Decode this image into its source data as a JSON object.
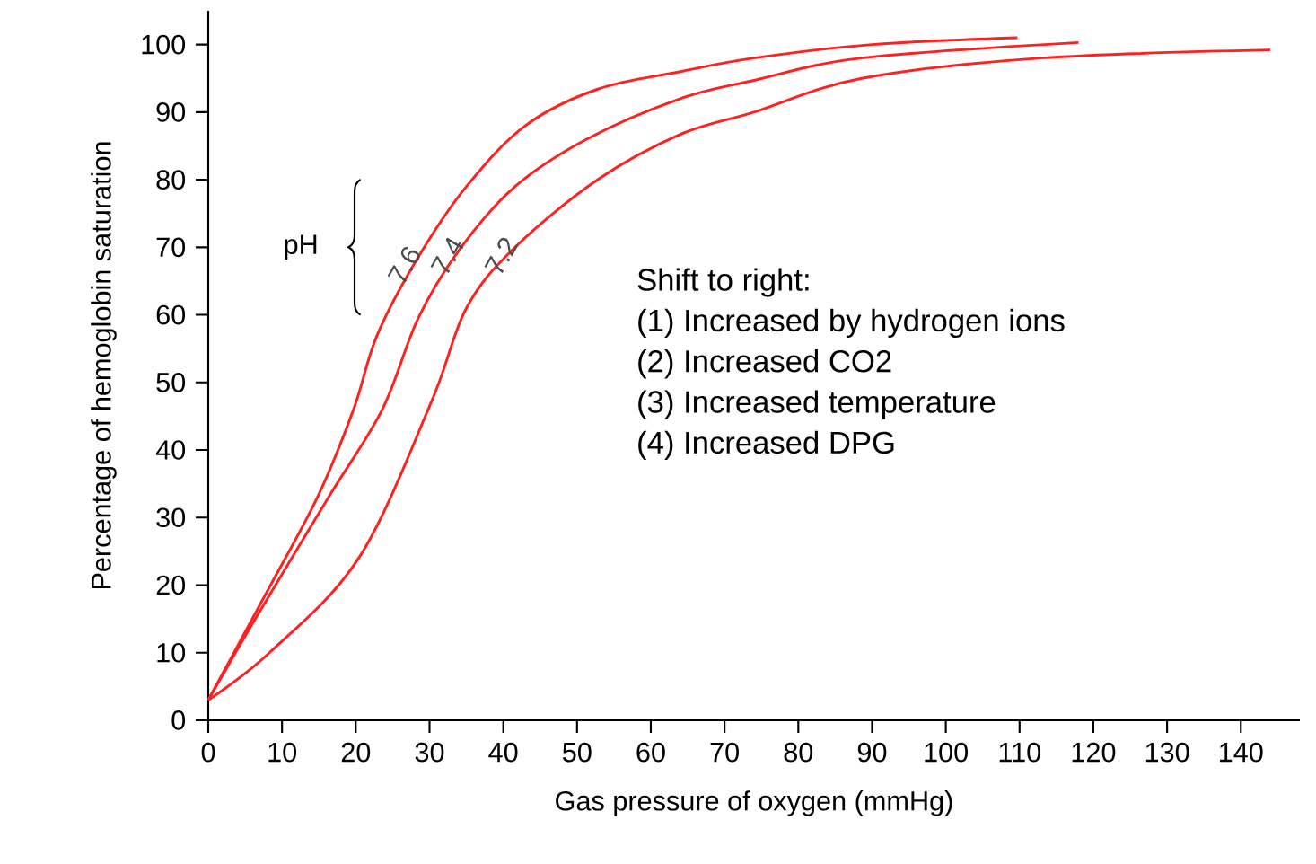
{
  "chart_data": {
    "type": "line",
    "xlabel": "Gas pressure of oxygen (mmHg)",
    "ylabel": "Percentage of hemoglobin saturation",
    "xlim": [
      0,
      148
    ],
    "ylim": [
      0,
      105
    ],
    "xticks": [
      0,
      10,
      20,
      30,
      40,
      50,
      60,
      70,
      80,
      90,
      100,
      110,
      120,
      130,
      140
    ],
    "yticks": [
      0,
      10,
      20,
      30,
      40,
      50,
      60,
      70,
      80,
      90,
      100
    ],
    "grid": false,
    "legend": false,
    "marker": "none",
    "line_style": "solid",
    "series": [
      {
        "name": "7.6",
        "color": "#ff2020",
        "x": [
          0,
          8.3,
          14.8,
          19.7,
          22.9,
          28.5,
          35,
          43,
          52.8,
          64,
          74,
          90,
          109.7
        ],
        "values": [
          3,
          19.7,
          33,
          46,
          57,
          68.6,
          79,
          88,
          93.4,
          96,
          98,
          100,
          101
        ]
      },
      {
        "name": "7.4",
        "color": "#ff2020",
        "x": [
          0,
          6.6,
          16.3,
          23.6,
          28.5,
          34.3,
          41.6,
          51.3,
          64,
          74,
          88.6,
          118
        ],
        "values": [
          3,
          15.4,
          33,
          46,
          59.6,
          70,
          79,
          86,
          92,
          94.7,
          98,
          100.3
        ]
      },
      {
        "name": "7.2",
        "color": "#ff2020",
        "x": [
          0,
          8.3,
          20.4,
          30.2,
          35,
          41.6,
          52.8,
          64,
          74,
          88.6,
          113,
          144
        ],
        "values": [
          3,
          10,
          24,
          47,
          61,
          70,
          80,
          86.7,
          90,
          95,
          98,
          99.2
        ]
      }
    ],
    "annotations": [
      "pH",
      "Shift to right:",
      "(1) Increased by hydrogen ions",
      "(2) Increased CO2",
      "(3) Increased temperature",
      "(4) Increased DPG"
    ]
  }
}
